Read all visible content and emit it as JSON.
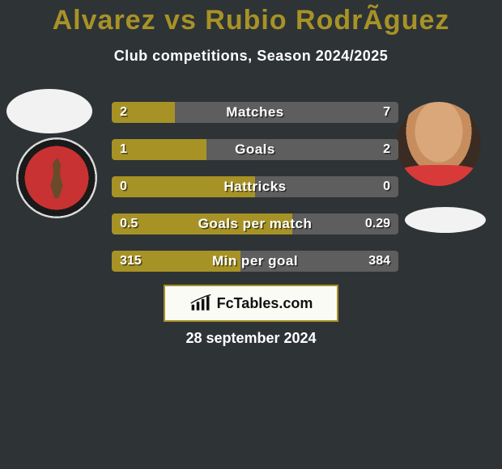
{
  "background_color": "#2e3336",
  "title": {
    "text": "Alvarez vs Rubio RodrÃ­guez",
    "color": "#a79226",
    "fontsize": 34
  },
  "subtitle": {
    "text": "Club competitions, Season 2024/2025",
    "color": "#ffffff",
    "fontsize": 18
  },
  "bars": {
    "left_color": "#a79226",
    "right_color": "#5e5e5e",
    "label_color": "#ffffff",
    "value_color": "#ffffff",
    "rows": [
      {
        "label": "Matches",
        "left_val": "2",
        "right_val": "7",
        "left_pct": 22,
        "right_pct": 78
      },
      {
        "label": "Goals",
        "left_val": "1",
        "right_val": "2",
        "left_pct": 33,
        "right_pct": 67
      },
      {
        "label": "Hattricks",
        "left_val": "0",
        "right_val": "0",
        "left_pct": 50,
        "right_pct": 50
      },
      {
        "label": "Goals per match",
        "left_val": "0.5",
        "right_val": "0.29",
        "left_pct": 63,
        "right_pct": 37
      },
      {
        "label": "Min per goal",
        "left_val": "315",
        "right_val": "384",
        "left_pct": 45,
        "right_pct": 55
      }
    ]
  },
  "logo": {
    "text": "FcTables.com",
    "border_color": "#a79226",
    "background_color": "#fbfbf6"
  },
  "date": {
    "text": "28 september 2024",
    "color": "#ffffff"
  },
  "player_left": {
    "name": "Alvarez",
    "club_badge_name": "club-tijuana-badge"
  },
  "player_right": {
    "name": "Rubio Rodriguez"
  }
}
